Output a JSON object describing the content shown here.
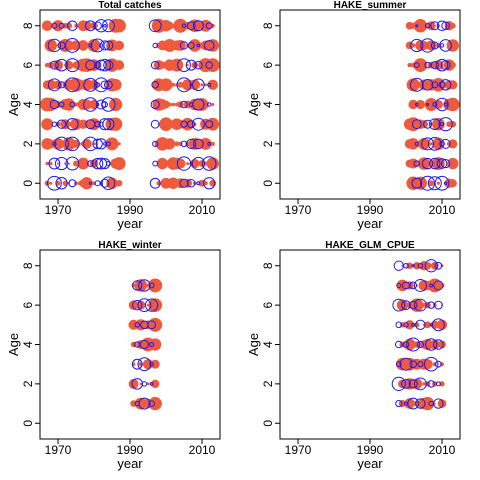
{
  "colors": {
    "positive": "#ef5a3c",
    "negative": "#1a1aee",
    "frame": "#000000"
  },
  "chart_data": [
    {
      "type": "scatter",
      "subtype": "bubble-residuals",
      "title": "Total catches",
      "xlabel": "year",
      "ylabel": "Age",
      "xlim": [
        1965,
        2015
      ],
      "ylim": [
        -0.8,
        8.8
      ],
      "xticks": [
        "1970",
        "1990",
        "2010"
      ],
      "yticks": [
        "0",
        "2",
        "4",
        "6",
        "8"
      ],
      "pos_x": [
        1967,
        1968,
        1970,
        1972,
        1973,
        1975,
        1976,
        1977,
        1978,
        1980,
        1985,
        1986,
        1987,
        1998,
        1999,
        2000,
        2001,
        2002,
        2003,
        2004,
        2006,
        2008,
        2010,
        2011,
        2013
      ],
      "neg_x": [
        1969,
        1971,
        1974,
        1979,
        1981,
        1982,
        1983,
        1984,
        1997,
        2005,
        2007,
        2009,
        2012
      ],
      "pos_ages": [
        0,
        1,
        2,
        3,
        4,
        5,
        6,
        7,
        8
      ],
      "neg_ages": [
        0,
        1,
        2,
        3,
        4,
        5,
        6,
        7,
        8
      ]
    },
    {
      "type": "scatter",
      "subtype": "bubble-residuals",
      "title": "HAKE_summer",
      "xlabel": "year",
      "ylabel": "Age",
      "xlim": [
        1965,
        2015
      ],
      "ylim": [
        -0.8,
        8.8
      ],
      "xticks": [
        "1970",
        "1990",
        "2010"
      ],
      "yticks": [
        "0",
        "2",
        "4",
        "6",
        "8"
      ],
      "pos_x": [
        2001,
        2002,
        2004,
        2005,
        2007,
        2009,
        2012,
        2013
      ],
      "neg_x": [
        2003,
        2006,
        2008,
        2010,
        2011
      ],
      "pos_ages": [
        0,
        1,
        2,
        3,
        4,
        5,
        6,
        7,
        8
      ],
      "neg_ages": [
        0,
        1,
        2,
        3,
        4,
        5,
        6,
        7,
        8
      ]
    },
    {
      "type": "scatter",
      "subtype": "bubble-residuals",
      "title": "HAKE_winter",
      "xlabel": "year",
      "ylabel": "Age",
      "xlim": [
        1965,
        2015
      ],
      "ylim": [
        -0.8,
        8.8
      ],
      "xticks": [
        "1970",
        "1990",
        "2010"
      ],
      "yticks": [
        "0",
        "2",
        "4",
        "6",
        "8"
      ],
      "pos_x": [
        1991,
        1993,
        1995,
        1997
      ],
      "neg_x": [
        1992,
        1994,
        1996
      ],
      "pos_ages": [
        1,
        2,
        3,
        4,
        5,
        6,
        7
      ],
      "neg_ages": [
        1,
        2,
        3,
        4,
        5,
        6,
        7
      ]
    },
    {
      "type": "scatter",
      "subtype": "bubble-residuals",
      "title": "HAKE_GLM_CPUE",
      "xlabel": "year",
      "ylabel": "Age",
      "xlim": [
        1965,
        2015
      ],
      "ylim": [
        -0.8,
        8.8
      ],
      "xticks": [
        "1970",
        "1990",
        "2010"
      ],
      "yticks": [
        "0",
        "2",
        "4",
        "6",
        "8"
      ],
      "pos_x": [
        1999,
        2001,
        2003,
        2005,
        2006,
        2008,
        2010
      ],
      "neg_x": [
        1998,
        2000,
        2002,
        2004,
        2007,
        2009
      ],
      "pos_ages": [
        1,
        2,
        3,
        4,
        5,
        6,
        7,
        8
      ],
      "neg_ages": [
        1,
        2,
        3,
        4,
        5,
        6,
        7,
        8
      ]
    }
  ]
}
